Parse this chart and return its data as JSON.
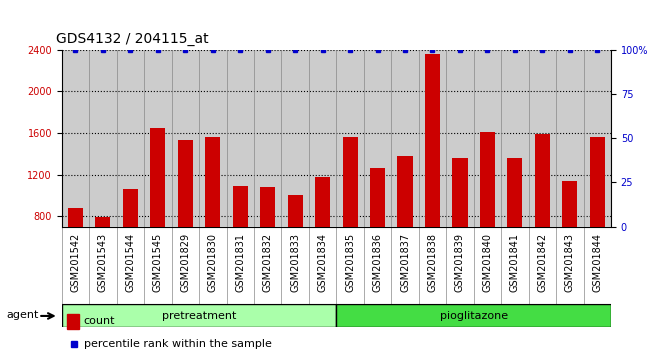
{
  "title": "GDS4132 / 204115_at",
  "samples": [
    "GSM201542",
    "GSM201543",
    "GSM201544",
    "GSM201545",
    "GSM201829",
    "GSM201830",
    "GSM201831",
    "GSM201832",
    "GSM201833",
    "GSM201834",
    "GSM201835",
    "GSM201836",
    "GSM201837",
    "GSM201838",
    "GSM201839",
    "GSM201840",
    "GSM201841",
    "GSM201842",
    "GSM201843",
    "GSM201844"
  ],
  "counts": [
    880,
    795,
    1060,
    1650,
    1530,
    1560,
    1090,
    1080,
    1000,
    1175,
    1560,
    1260,
    1380,
    2360,
    1360,
    1610,
    1360,
    1590,
    1140,
    1560
  ],
  "percentile": [
    100,
    100,
    100,
    100,
    100,
    100,
    100,
    100,
    100,
    100,
    100,
    100,
    100,
    100,
    100,
    100,
    100,
    100,
    100,
    100
  ],
  "bar_color": "#cc0000",
  "dot_color": "#0000cc",
  "ylim_left": [
    700,
    2400
  ],
  "ylim_right": [
    0,
    100
  ],
  "yticks_left": [
    800,
    1200,
    1600,
    2000,
    2400
  ],
  "yticks_right": [
    0,
    25,
    50,
    75,
    100
  ],
  "ytick_labels_right": [
    "0",
    "25",
    "50",
    "75",
    "100%"
  ],
  "group_label_pretreatment": "pretreatment",
  "group_label_pioglitazone": "pioglitazone",
  "pretreatment_color": "#aaffaa",
  "pioglitazone_color": "#44dd44",
  "agent_label": "agent",
  "legend_count_label": "count",
  "legend_pct_label": "percentile rank within the sample",
  "bg_color_plot": "#cccccc",
  "bg_color_fig": "#ffffff",
  "title_fontsize": 10,
  "tick_fontsize": 7,
  "bar_width": 0.55
}
